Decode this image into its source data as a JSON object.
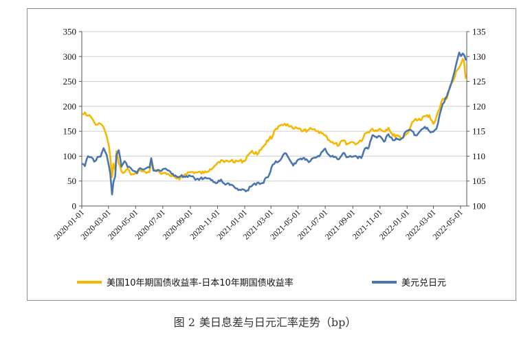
{
  "caption": {
    "figure_no": "图 2",
    "text": "美日息差与日元汇率走势（bp）"
  },
  "colors": {
    "spread": "#F5B800",
    "usdjpy": "#4A76AF",
    "grid": "#CFCFCF",
    "axis": "#555555",
    "frame": "#8C8C8C"
  },
  "chart_data": {
    "type": "line",
    "title": "",
    "x_type": "date",
    "x_range": [
      "2020-01-01",
      "2022-05-15"
    ],
    "x_tick_labels": [
      "2020-01-01",
      "2020-03-01",
      "2020-05-01",
      "2020-07-01",
      "2020-09-01",
      "2020-11-01",
      "2021-01-01",
      "2021-03-01",
      "2021-05-01",
      "2021-07-01",
      "2021-09-01",
      "2021-11-01",
      "2022-01-01",
      "2022-03-01",
      "2022-05-01"
    ],
    "y_left": {
      "min": 0,
      "max": 350,
      "ticks": [
        0,
        50,
        100,
        150,
        200,
        250,
        300,
        350
      ]
    },
    "y_right": {
      "min": 100,
      "max": 135,
      "ticks": [
        100,
        105,
        110,
        115,
        120,
        125,
        130,
        135
      ]
    },
    "grid": "horizontal",
    "legend_position": "bottom",
    "series": [
      {
        "name": "美国10年期国债收益率-日本10年期国债收益率",
        "axis": "left",
        "points": [
          [
            "2020-01-02",
            185
          ],
          [
            "2020-01-08",
            188
          ],
          [
            "2020-01-15",
            181
          ],
          [
            "2020-01-22",
            178
          ],
          [
            "2020-01-29",
            168
          ],
          [
            "2020-02-05",
            163
          ],
          [
            "2020-02-12",
            165
          ],
          [
            "2020-02-19",
            158
          ],
          [
            "2020-02-26",
            140
          ],
          [
            "2020-03-02",
            120
          ],
          [
            "2020-03-05",
            98
          ],
          [
            "2020-03-09",
            58
          ],
          [
            "2020-03-12",
            85
          ],
          [
            "2020-03-16",
            72
          ],
          [
            "2020-03-19",
            110
          ],
          [
            "2020-03-24",
            85
          ],
          [
            "2020-03-30",
            70
          ],
          [
            "2020-04-06",
            68
          ],
          [
            "2020-04-13",
            75
          ],
          [
            "2020-04-20",
            63
          ],
          [
            "2020-04-27",
            64
          ],
          [
            "2020-05-04",
            65
          ],
          [
            "2020-05-11",
            72
          ],
          [
            "2020-05-18",
            70
          ],
          [
            "2020-05-25",
            66
          ],
          [
            "2020-06-01",
            68
          ],
          [
            "2020-06-05",
            88
          ],
          [
            "2020-06-10",
            75
          ],
          [
            "2020-06-17",
            72
          ],
          [
            "2020-06-24",
            67
          ],
          [
            "2020-07-01",
            66
          ],
          [
            "2020-07-15",
            63
          ],
          [
            "2020-08-01",
            55
          ],
          [
            "2020-08-10",
            57
          ],
          [
            "2020-08-20",
            64
          ],
          [
            "2020-09-01",
            68
          ],
          [
            "2020-09-15",
            67
          ],
          [
            "2020-10-01",
            66
          ],
          [
            "2020-10-15",
            74
          ],
          [
            "2020-10-25",
            80
          ],
          [
            "2020-11-01",
            87
          ],
          [
            "2020-11-09",
            92
          ],
          [
            "2020-11-16",
            88
          ],
          [
            "2020-12-01",
            91
          ],
          [
            "2020-12-15",
            90
          ],
          [
            "2021-01-01",
            90
          ],
          [
            "2021-01-06",
            100
          ],
          [
            "2021-01-15",
            108
          ],
          [
            "2021-02-01",
            106
          ],
          [
            "2021-02-10",
            118
          ],
          [
            "2021-02-25",
            135
          ],
          [
            "2021-03-05",
            140
          ],
          [
            "2021-03-12",
            155
          ],
          [
            "2021-03-18",
            160
          ],
          [
            "2021-03-25",
            163
          ],
          [
            "2021-04-01",
            165
          ],
          [
            "2021-04-10",
            160
          ],
          [
            "2021-04-20",
            155
          ],
          [
            "2021-05-01",
            155
          ],
          [
            "2021-05-12",
            150
          ],
          [
            "2021-05-25",
            153
          ],
          [
            "2021-06-01",
            154
          ],
          [
            "2021-06-10",
            150
          ],
          [
            "2021-06-20",
            149
          ],
          [
            "2021-07-01",
            142
          ],
          [
            "2021-07-10",
            132
          ],
          [
            "2021-07-20",
            125
          ],
          [
            "2021-08-01",
            122
          ],
          [
            "2021-08-10",
            131
          ],
          [
            "2021-08-20",
            125
          ],
          [
            "2021-09-01",
            128
          ],
          [
            "2021-09-10",
            125
          ],
          [
            "2021-09-20",
            130
          ],
          [
            "2021-09-28",
            145
          ],
          [
            "2021-10-05",
            148
          ],
          [
            "2021-10-15",
            155
          ],
          [
            "2021-10-25",
            150
          ],
          [
            "2021-11-01",
            155
          ],
          [
            "2021-11-10",
            150
          ],
          [
            "2021-11-20",
            157
          ],
          [
            "2021-11-30",
            141
          ],
          [
            "2021-12-10",
            142
          ],
          [
            "2021-12-20",
            136
          ],
          [
            "2022-01-01",
            145
          ],
          [
            "2022-01-10",
            162
          ],
          [
            "2022-01-20",
            175
          ],
          [
            "2022-01-31",
            172
          ],
          [
            "2022-02-10",
            180
          ],
          [
            "2022-02-20",
            182
          ],
          [
            "2022-03-01",
            165
          ],
          [
            "2022-03-08",
            180
          ],
          [
            "2022-03-15",
            195
          ],
          [
            "2022-03-22",
            215
          ],
          [
            "2022-03-31",
            215
          ],
          [
            "2022-04-07",
            240
          ],
          [
            "2022-04-14",
            250
          ],
          [
            "2022-04-21",
            270
          ],
          [
            "2022-04-28",
            278
          ],
          [
            "2022-05-02",
            285
          ],
          [
            "2022-05-06",
            295
          ],
          [
            "2022-05-09",
            290
          ],
          [
            "2022-05-11",
            270
          ],
          [
            "2022-05-13",
            255
          ]
        ]
      },
      {
        "name": "美元兑日元",
        "axis": "right",
        "points": [
          [
            "2020-01-02",
            108.5
          ],
          [
            "2020-01-08",
            108.0
          ],
          [
            "2020-01-15",
            110.0
          ],
          [
            "2020-01-22",
            109.8
          ],
          [
            "2020-01-29",
            108.9
          ],
          [
            "2020-02-05",
            109.8
          ],
          [
            "2020-02-12",
            109.9
          ],
          [
            "2020-02-19",
            111.6
          ],
          [
            "2020-02-26",
            110.2
          ],
          [
            "2020-03-02",
            108.0
          ],
          [
            "2020-03-05",
            106.5
          ],
          [
            "2020-03-09",
            102.3
          ],
          [
            "2020-03-12",
            104.8
          ],
          [
            "2020-03-16",
            106.0
          ],
          [
            "2020-03-19",
            110.3
          ],
          [
            "2020-03-24",
            111.2
          ],
          [
            "2020-03-30",
            107.9
          ],
          [
            "2020-04-06",
            109.0
          ],
          [
            "2020-04-13",
            107.8
          ],
          [
            "2020-04-20",
            107.6
          ],
          [
            "2020-04-27",
            107.0
          ],
          [
            "2020-05-04",
            106.6
          ],
          [
            "2020-05-11",
            107.6
          ],
          [
            "2020-05-18",
            107.3
          ],
          [
            "2020-05-25",
            107.6
          ],
          [
            "2020-06-01",
            107.7
          ],
          [
            "2020-06-05",
            109.6
          ],
          [
            "2020-06-10",
            107.1
          ],
          [
            "2020-06-17",
            107.0
          ],
          [
            "2020-06-24",
            107.1
          ],
          [
            "2020-07-01",
            107.4
          ],
          [
            "2020-07-15",
            107.1
          ],
          [
            "2020-08-01",
            105.9
          ],
          [
            "2020-08-10",
            106.0
          ],
          [
            "2020-08-20",
            105.8
          ],
          [
            "2020-09-01",
            106.0
          ],
          [
            "2020-09-15",
            105.4
          ],
          [
            "2020-10-01",
            105.5
          ],
          [
            "2020-10-15",
            105.5
          ],
          [
            "2020-10-25",
            104.8
          ],
          [
            "2020-11-01",
            104.7
          ],
          [
            "2020-11-09",
            105.3
          ],
          [
            "2020-11-16",
            104.5
          ],
          [
            "2020-12-01",
            104.3
          ],
          [
            "2020-12-15",
            103.5
          ],
          [
            "2021-01-01",
            103.2
          ],
          [
            "2021-01-06",
            103.1
          ],
          [
            "2021-01-15",
            103.9
          ],
          [
            "2021-02-01",
            104.7
          ],
          [
            "2021-02-10",
            104.6
          ],
          [
            "2021-02-25",
            106.3
          ],
          [
            "2021-03-05",
            108.3
          ],
          [
            "2021-03-12",
            109.0
          ],
          [
            "2021-03-18",
            108.9
          ],
          [
            "2021-03-25",
            109.6
          ],
          [
            "2021-04-01",
            110.6
          ],
          [
            "2021-04-10",
            109.6
          ],
          [
            "2021-04-20",
            108.1
          ],
          [
            "2021-05-01",
            109.3
          ],
          [
            "2021-05-12",
            109.6
          ],
          [
            "2021-05-25",
            108.8
          ],
          [
            "2021-06-01",
            109.5
          ],
          [
            "2021-06-10",
            109.7
          ],
          [
            "2021-06-20",
            110.3
          ],
          [
            "2021-07-01",
            111.5
          ],
          [
            "2021-07-10",
            110.2
          ],
          [
            "2021-07-20",
            109.8
          ],
          [
            "2021-08-01",
            109.4
          ],
          [
            "2021-08-10",
            110.6
          ],
          [
            "2021-08-20",
            109.8
          ],
          [
            "2021-09-01",
            109.9
          ],
          [
            "2021-09-10",
            109.9
          ],
          [
            "2021-09-20",
            109.6
          ],
          [
            "2021-09-28",
            111.5
          ],
          [
            "2021-10-05",
            111.5
          ],
          [
            "2021-10-15",
            114.2
          ],
          [
            "2021-10-25",
            113.7
          ],
          [
            "2021-11-01",
            114.0
          ],
          [
            "2021-11-10",
            112.9
          ],
          [
            "2021-11-20",
            114.4
          ],
          [
            "2021-11-30",
            113.2
          ],
          [
            "2021-12-10",
            113.4
          ],
          [
            "2021-12-20",
            113.6
          ],
          [
            "2022-01-01",
            115.1
          ],
          [
            "2022-01-10",
            115.2
          ],
          [
            "2022-01-20",
            114.2
          ],
          [
            "2022-01-31",
            115.1
          ],
          [
            "2022-02-10",
            115.9
          ],
          [
            "2022-02-20",
            115.0
          ],
          [
            "2022-03-01",
            114.9
          ],
          [
            "2022-03-08",
            115.5
          ],
          [
            "2022-03-15",
            118.3
          ],
          [
            "2022-03-22",
            120.5
          ],
          [
            "2022-03-31",
            122.0
          ],
          [
            "2022-04-07",
            123.7
          ],
          [
            "2022-04-14",
            125.8
          ],
          [
            "2022-04-21",
            128.4
          ],
          [
            "2022-04-28",
            130.8
          ],
          [
            "2022-05-02",
            130.1
          ],
          [
            "2022-05-06",
            130.6
          ],
          [
            "2022-05-09",
            130.3
          ],
          [
            "2022-05-11",
            129.9
          ],
          [
            "2022-05-13",
            129.2
          ]
        ]
      }
    ]
  }
}
